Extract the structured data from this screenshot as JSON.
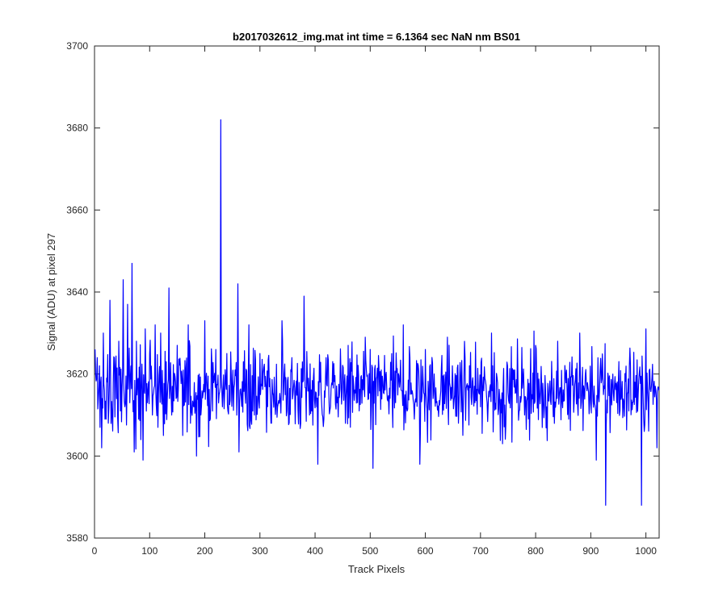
{
  "chart_data": {
    "type": "line",
    "title": "b2017032612_img.mat int time = 6.1364 sec  NaN nm BS01",
    "xlabel": "Track Pixels",
    "ylabel": "Signal (ADU) at pixel 297",
    "xlim": [
      0,
      1024
    ],
    "ylim": [
      3580,
      3700
    ],
    "xticks": [
      0,
      100,
      200,
      300,
      400,
      500,
      600,
      700,
      800,
      900,
      1000
    ],
    "yticks": [
      3580,
      3600,
      3620,
      3640,
      3660,
      3680,
      3700
    ],
    "grid": false,
    "series": [
      {
        "color": "#0000ff",
        "noise_baseline": 3616,
        "points": [
          [
            1,
            3626
          ],
          [
            5,
            3624
          ],
          [
            8,
            3617
          ],
          [
            10,
            3607
          ],
          [
            13,
            3602
          ],
          [
            16,
            3630
          ],
          [
            19,
            3609
          ],
          [
            22,
            3619
          ],
          [
            25,
            3608
          ],
          [
            28,
            3638
          ],
          [
            32,
            3610
          ],
          [
            36,
            3624
          ],
          [
            40,
            3614
          ],
          [
            44,
            3628
          ],
          [
            47,
            3611
          ],
          [
            52,
            3643
          ],
          [
            56,
            3613
          ],
          [
            60,
            3637
          ],
          [
            64,
            3613
          ],
          [
            68,
            3647
          ],
          [
            72,
            3601
          ],
          [
            76,
            3628
          ],
          [
            80,
            3609
          ],
          [
            84,
            3604
          ],
          [
            88,
            3599
          ],
          [
            92,
            3631
          ],
          [
            96,
            3613
          ],
          [
            100,
            3625
          ],
          [
            105,
            3610
          ],
          [
            110,
            3632
          ],
          [
            115,
            3607
          ],
          [
            120,
            3630
          ],
          [
            125,
            3605
          ],
          [
            130,
            3623
          ],
          [
            135,
            3641
          ],
          [
            140,
            3610
          ],
          [
            150,
            3627
          ],
          [
            160,
            3605
          ],
          [
            170,
            3632
          ],
          [
            180,
            3612
          ],
          [
            185,
            3600
          ],
          [
            190,
            3620
          ],
          [
            200,
            3633
          ],
          [
            210,
            3609
          ],
          [
            220,
            3626
          ],
          [
            226,
            3615
          ],
          [
            229,
            3682
          ],
          [
            232,
            3612
          ],
          [
            240,
            3625
          ],
          [
            250,
            3617
          ],
          [
            255,
            3621
          ],
          [
            260,
            3642
          ],
          [
            270,
            3623
          ],
          [
            280,
            3632
          ],
          [
            290,
            3610
          ],
          [
            300,
            3625
          ],
          [
            320,
            3608
          ],
          [
            340,
            3633
          ],
          [
            360,
            3615
          ],
          [
            380,
            3639
          ],
          [
            390,
            3610
          ],
          [
            405,
            3598
          ],
          [
            420,
            3624
          ],
          [
            440,
            3613
          ],
          [
            460,
            3627
          ],
          [
            480,
            3611
          ],
          [
            500,
            3626
          ],
          [
            505,
            3597
          ],
          [
            520,
            3621
          ],
          [
            540,
            3613
          ],
          [
            560,
            3632
          ],
          [
            580,
            3609
          ],
          [
            590,
            3598
          ],
          [
            600,
            3626
          ],
          [
            620,
            3613
          ],
          [
            640,
            3629
          ],
          [
            660,
            3608
          ],
          [
            680,
            3622
          ],
          [
            700,
            3612
          ],
          [
            720,
            3630
          ],
          [
            740,
            3603
          ],
          [
            760,
            3621
          ],
          [
            780,
            3610
          ],
          [
            800,
            3627
          ],
          [
            820,
            3612
          ],
          [
            840,
            3628
          ],
          [
            860,
            3609
          ],
          [
            880,
            3630
          ],
          [
            900,
            3614
          ],
          [
            910,
            3599
          ],
          [
            927,
            3588
          ],
          [
            940,
            3620
          ],
          [
            960,
            3613
          ],
          [
            970,
            3622
          ],
          [
            980,
            3618
          ],
          [
            992,
            3588
          ],
          [
            1000,
            3631
          ],
          [
            1010,
            3617
          ],
          [
            1020,
            3602
          ],
          [
            1024,
            3616
          ]
        ]
      }
    ]
  }
}
